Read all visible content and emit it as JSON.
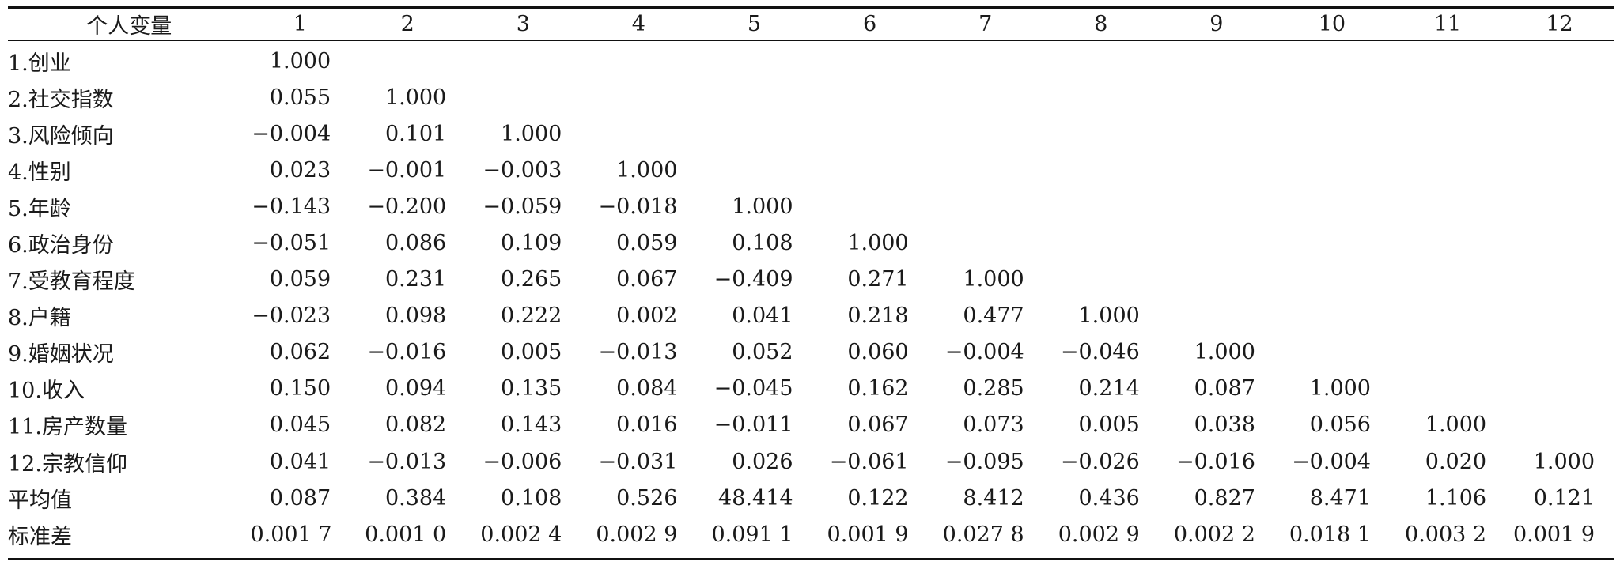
{
  "table": {
    "corner_label": "个人变量",
    "column_headers": [
      "1",
      "2",
      "3",
      "4",
      "5",
      "6",
      "7",
      "8",
      "9",
      "10",
      "11",
      "12"
    ],
    "rows": [
      {
        "label": "1.创业",
        "values": [
          "1.000"
        ]
      },
      {
        "label": "2.社交指数",
        "values": [
          "0.055",
          "1.000"
        ]
      },
      {
        "label": "3.风险倾向",
        "values": [
          "−0.004",
          "0.101",
          "1.000"
        ]
      },
      {
        "label": "4.性别",
        "values": [
          "0.023",
          "−0.001",
          "−0.003",
          "1.000"
        ]
      },
      {
        "label": "5.年龄",
        "values": [
          "−0.143",
          "−0.200",
          "−0.059",
          "−0.018",
          "1.000"
        ]
      },
      {
        "label": "6.政治身份",
        "values": [
          "−0.051",
          "0.086",
          "0.109",
          "0.059",
          "0.108",
          "1.000"
        ]
      },
      {
        "label": "7.受教育程度",
        "values": [
          "0.059",
          "0.231",
          "0.265",
          "0.067",
          "−0.409",
          "0.271",
          "1.000"
        ]
      },
      {
        "label": "8.户籍",
        "values": [
          "−0.023",
          "0.098",
          "0.222",
          "0.002",
          "0.041",
          "0.218",
          "0.477",
          "1.000"
        ]
      },
      {
        "label": "9.婚姻状况",
        "values": [
          "0.062",
          "−0.016",
          "0.005",
          "−0.013",
          "0.052",
          "0.060",
          "−0.004",
          "−0.046",
          "1.000"
        ]
      },
      {
        "label": "10.收入",
        "values": [
          "0.150",
          "0.094",
          "0.135",
          "0.084",
          "−0.045",
          "0.162",
          "0.285",
          "0.214",
          "0.087",
          "1.000"
        ]
      },
      {
        "label": "11.房产数量",
        "values": [
          "0.045",
          "0.082",
          "0.143",
          "0.016",
          "−0.011",
          "0.067",
          "0.073",
          "0.005",
          "0.038",
          "0.056",
          "1.000"
        ]
      },
      {
        "label": "12.宗教信仰",
        "values": [
          "0.041",
          "−0.013",
          "−0.006",
          "−0.031",
          "0.026",
          "−0.061",
          "−0.095",
          "−0.026",
          "−0.016",
          "−0.004",
          "0.020",
          "1.000"
        ]
      },
      {
        "label": "平均值",
        "values": [
          "0.087",
          "0.384",
          "0.108",
          "0.526",
          "48.414",
          "0.122",
          "8.412",
          "0.436",
          "0.827",
          "8.471",
          "1.106",
          "0.121"
        ]
      },
      {
        "label": "标准差",
        "values": [
          "0.001 7",
          "0.001 0",
          "0.002 4",
          "0.002 9",
          "0.091 1",
          "0.001 9",
          "0.027 8",
          "0.002 9",
          "0.002 2",
          "0.018 1",
          "0.003 2",
          "0.001 9"
        ]
      }
    ]
  }
}
